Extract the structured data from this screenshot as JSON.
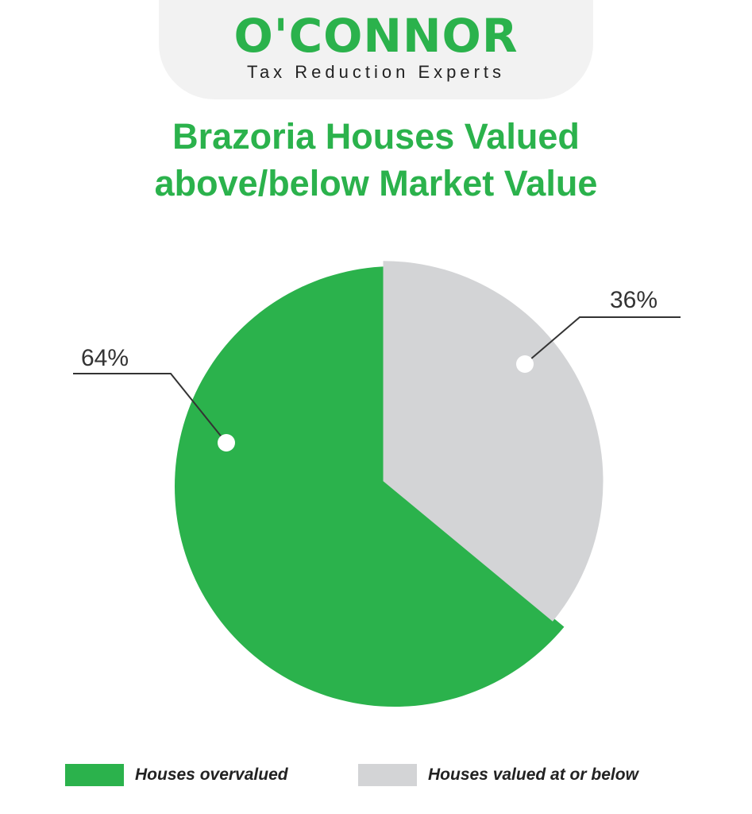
{
  "logo": {
    "name": "O'CONNOR",
    "tagline": "Tax Reduction Experts"
  },
  "colors": {
    "brand_green": "#2bb24c",
    "slice_gray": "#d3d4d6",
    "text_dark": "#333333"
  },
  "chart_data": {
    "type": "pie",
    "title_lines": [
      "Brazoria Houses Valued",
      "above/below Market Value"
    ],
    "slices": [
      {
        "label": "Houses overvalued",
        "value": 64,
        "display": "64%",
        "color": "#2bb24c"
      },
      {
        "label": "Houses valued at or below",
        "value": 36,
        "display": "36%",
        "color": "#d3d4d6"
      }
    ],
    "legend_position": "bottom"
  }
}
